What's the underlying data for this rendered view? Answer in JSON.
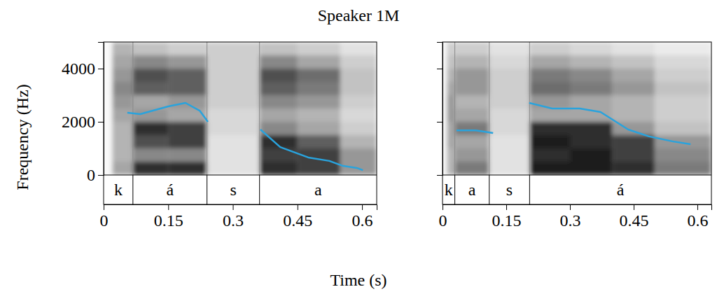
{
  "title": "Speaker 1M",
  "x_label": "Time (s)",
  "y_label": "Frequency (Hz)",
  "chart_data": [
    {
      "type": "line",
      "xlim": [
        0,
        0.634
      ],
      "ylim": [
        0,
        5000
      ],
      "xticks": [
        0,
        0.15,
        0.3,
        0.45,
        0.6
      ],
      "yticks": [
        0,
        2000,
        4000
      ],
      "x": [
        0.055,
        0.085,
        0.15,
        0.19,
        0.223,
        0.242,
        0.3,
        0.364,
        0.41,
        0.475,
        0.524,
        0.556,
        0.589,
        0.602
      ],
      "series": [
        {
          "color": "#29a3dd",
          "values": [
            2342,
            2290,
            2580,
            2710,
            2420,
            2000,
            null,
            1710,
            1050,
            660,
            530,
            340,
            260,
            180
          ]
        }
      ],
      "segments": [
        {
          "label": "k",
          "start": 0,
          "end": 0.068
        },
        {
          "label": "á",
          "start": 0.068,
          "end": 0.24
        },
        {
          "label": "s",
          "start": 0.24,
          "end": 0.362
        },
        {
          "label": "a",
          "start": 0.362,
          "end": 0.634
        }
      ],
      "spectrogram": {
        "zlim": [
          0,
          1
        ],
        "times": [
          0,
          0.02,
          0.068,
          0.15,
          0.24,
          0.362,
          0.45,
          0.55,
          0.634
        ],
        "freqs": [
          0,
          500,
          1000,
          1500,
          2000,
          2500,
          3000,
          3500,
          4000,
          4500,
          5000
        ],
        "intensity": [
          [
            0.05,
            0.05,
            0.05,
            0.05,
            0.05,
            0.05,
            0.05,
            0.05,
            0.05,
            0.05
          ],
          [
            0.45,
            0.4,
            0.4,
            0.4,
            0.45,
            0.5,
            0.55,
            0.5,
            0.45,
            0.4
          ],
          [
            0.85,
            0.55,
            0.75,
            0.85,
            0.5,
            0.45,
            0.7,
            0.75,
            0.55,
            0.35
          ],
          [
            0.85,
            0.55,
            0.8,
            0.8,
            0.45,
            0.5,
            0.7,
            0.7,
            0.5,
            0.3
          ],
          [
            0.2,
            0.2,
            0.2,
            0.25,
            0.25,
            0.3,
            0.3,
            0.3,
            0.3,
            0.3
          ],
          [
            0.85,
            0.8,
            0.85,
            0.55,
            0.45,
            0.55,
            0.7,
            0.75,
            0.55,
            0.35
          ],
          [
            0.8,
            0.8,
            0.7,
            0.45,
            0.4,
            0.5,
            0.6,
            0.65,
            0.45,
            0.3
          ],
          [
            0.5,
            0.5,
            0.4,
            0.3,
            0.25,
            0.3,
            0.35,
            0.35,
            0.3,
            0.2
          ]
        ]
      }
    },
    {
      "type": "line",
      "xlim": [
        0,
        0.633
      ],
      "ylim": [
        0,
        5000
      ],
      "xticks": [
        0,
        0.15,
        0.3,
        0.45,
        0.6
      ],
      "yticks": [
        0,
        2000,
        4000
      ],
      "tick_labels": "x",
      "x": [
        0.033,
        0.078,
        0.119,
        0.16,
        0.204,
        0.258,
        0.323,
        0.372,
        0.437,
        0.486,
        0.543,
        0.584
      ],
      "series": [
        {
          "color": "#29a3dd",
          "values": [
            1680,
            1680,
            1580,
            null,
            2710,
            2500,
            2500,
            2370,
            1710,
            1450,
            1260,
            1160
          ]
        }
      ],
      "segments": [
        {
          "label": "k",
          "start": 0,
          "end": 0.029
        },
        {
          "label": "a",
          "start": 0.029,
          "end": 0.11
        },
        {
          "label": "s",
          "start": 0.11,
          "end": 0.205
        },
        {
          "label": "á",
          "start": 0.205,
          "end": 0.633
        }
      ],
      "spectrogram": {
        "zlim": [
          0,
          1
        ],
        "times": [
          0,
          0.01,
          0.029,
          0.11,
          0.205,
          0.3,
          0.4,
          0.5,
          0.633
        ],
        "freqs": [
          0,
          500,
          1000,
          1500,
          2000,
          2500,
          3000,
          3500,
          4000,
          4500,
          5000
        ],
        "intensity": [
          [
            0.05,
            0.05,
            0.05,
            0.05,
            0.05,
            0.05,
            0.05,
            0.05,
            0.05,
            0.05
          ],
          [
            0.4,
            0.4,
            0.45,
            0.45,
            0.5,
            0.5,
            0.45,
            0.4,
            0.35,
            0.3
          ],
          [
            0.6,
            0.5,
            0.45,
            0.6,
            0.45,
            0.4,
            0.5,
            0.5,
            0.4,
            0.3
          ],
          [
            0.2,
            0.2,
            0.2,
            0.25,
            0.25,
            0.3,
            0.3,
            0.3,
            0.25,
            0.2
          ],
          [
            0.9,
            0.85,
            0.9,
            0.85,
            0.45,
            0.5,
            0.65,
            0.6,
            0.45,
            0.3
          ],
          [
            0.9,
            0.9,
            0.85,
            0.85,
            0.45,
            0.45,
            0.6,
            0.55,
            0.4,
            0.25
          ],
          [
            0.85,
            0.8,
            0.8,
            0.5,
            0.4,
            0.4,
            0.5,
            0.45,
            0.35,
            0.2
          ],
          [
            0.6,
            0.55,
            0.5,
            0.35,
            0.3,
            0.3,
            0.35,
            0.3,
            0.25,
            0.15
          ]
        ]
      }
    }
  ]
}
